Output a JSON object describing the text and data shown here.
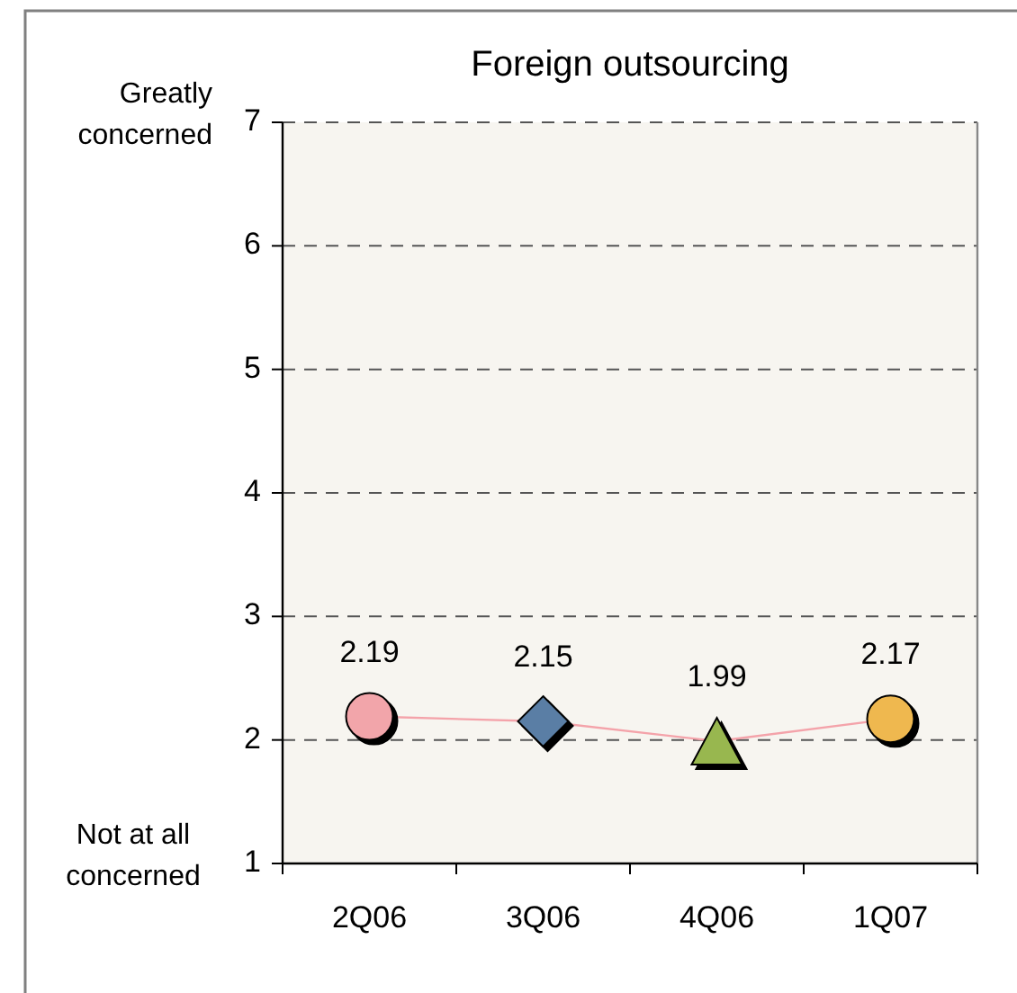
{
  "chart_data": {
    "type": "line",
    "title": "Foreign outsourcing",
    "categories": [
      "2Q06",
      "3Q06",
      "4Q06",
      "1Q07"
    ],
    "series": [
      {
        "values": [
          2.19,
          2.15,
          1.99,
          2.17
        ],
        "color": "#f4a3aa",
        "colors": [
          "#f2a5aa",
          "#5a7ea5",
          "#98b74f",
          "#efb84f"
        ],
        "marker": [
          "circle",
          "diamond",
          "triangle",
          "circle"
        ]
      }
    ],
    "ylim": [
      1,
      7
    ],
    "yticks": [
      1,
      2,
      3,
      4,
      5,
      6,
      7
    ],
    "grid": "y",
    "line_style": "solid",
    "data_labels": true,
    "annotations": [
      "Greatly concerned",
      "Not at all concerned"
    ]
  }
}
